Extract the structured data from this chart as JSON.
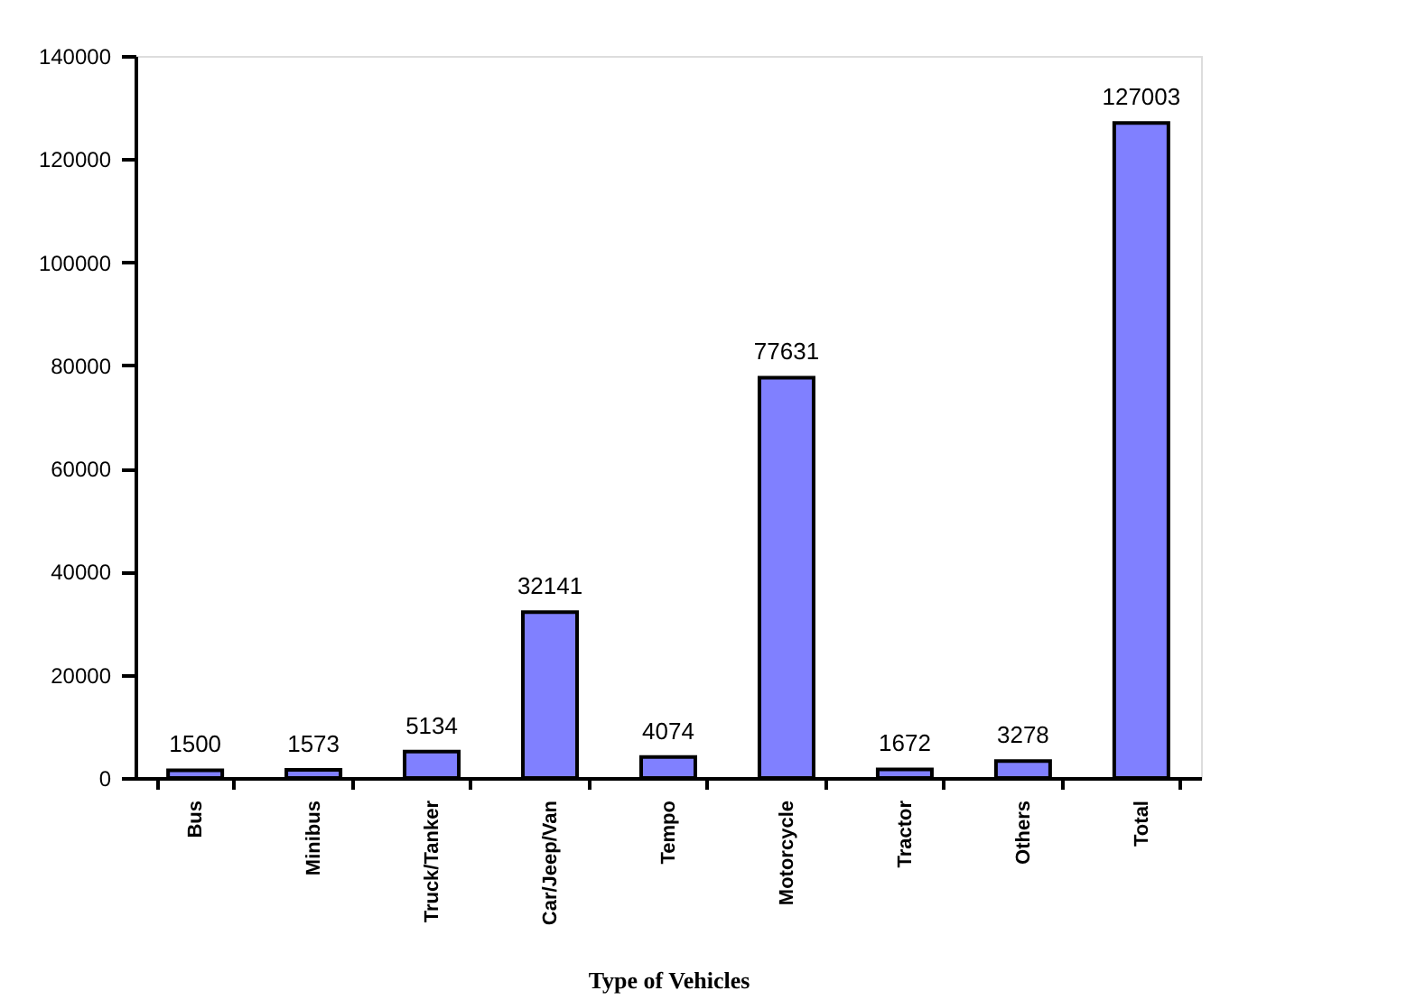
{
  "chart_data": {
    "type": "bar",
    "xlabel": "Type of Vehicles",
    "categories": [
      "Bus",
      "Minibus",
      "Truck/Tanker",
      "Car/Jeep/Van",
      "Tempo",
      "Motorcycle",
      "Tractor",
      "Others",
      "Total"
    ],
    "values": [
      1500,
      1573,
      5134,
      32141,
      4074,
      77631,
      1672,
      3278,
      127003
    ],
    "color": "#8080ff",
    "ylim": [
      0,
      140000
    ],
    "yticks": [
      0,
      20000,
      40000,
      60000,
      80000,
      100000,
      120000,
      140000
    ],
    "data_labels": true,
    "grid": false
  }
}
